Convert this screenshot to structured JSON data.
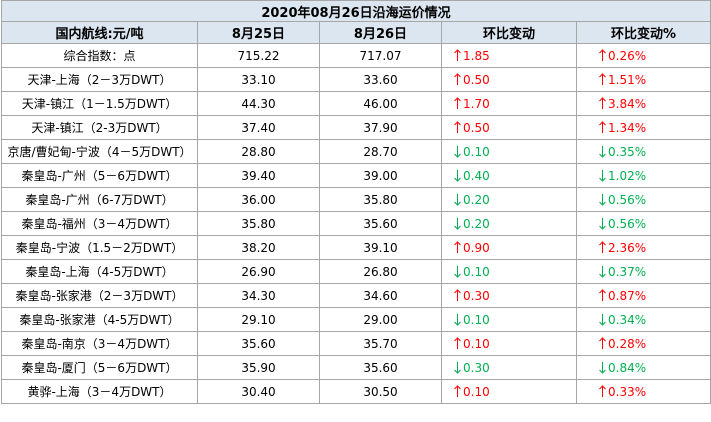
{
  "title": "2020年08月26日沿海运价情况",
  "header": [
    "国内航线:元/吨",
    "8月25日",
    "8月26日",
    "环比变动",
    "环比变动%"
  ],
  "rows": [
    {
      "route": "综合指数：点",
      "prev": "715.22",
      "curr": "717.07",
      "change": "1.85",
      "pct": "0.26%",
      "direction": "up"
    },
    {
      "route": "天津-上海（2－3万DWT）",
      "prev": "33.10",
      "curr": "33.60",
      "change": "0.50",
      "pct": "1.51%",
      "direction": "up"
    },
    {
      "route": "天津-镇江（1－1.5万DWT）",
      "prev": "44.30",
      "curr": "46.00",
      "change": "1.70",
      "pct": "3.84%",
      "direction": "up"
    },
    {
      "route": "天津-镇江（2-3万DWT）",
      "prev": "37.40",
      "curr": "37.90",
      "change": "0.50",
      "pct": "1.34%",
      "direction": "up"
    },
    {
      "route": "京唐/曹妃甸-宁波（4－5万DWT）",
      "prev": "28.80",
      "curr": "28.70",
      "change": "0.10",
      "pct": "0.35%",
      "direction": "down"
    },
    {
      "route": "秦皇岛-广州（5－6万DWT）",
      "prev": "39.40",
      "curr": "39.00",
      "change": "0.40",
      "pct": "1.02%",
      "direction": "down"
    },
    {
      "route": "秦皇岛-广州（6-7万DWT）",
      "prev": "36.00",
      "curr": "35.80",
      "change": "0.20",
      "pct": "0.56%",
      "direction": "down"
    },
    {
      "route": "秦皇岛-福州（3－4万DWT）",
      "prev": "35.80",
      "curr": "35.60",
      "change": "0.20",
      "pct": "0.56%",
      "direction": "down"
    },
    {
      "route": "秦皇岛-宁波（1.5－2万DWT）",
      "prev": "38.20",
      "curr": "39.10",
      "change": "0.90",
      "pct": "2.36%",
      "direction": "up"
    },
    {
      "route": "秦皇岛-上海（4-5万DWT）",
      "prev": "26.90",
      "curr": "26.80",
      "change": "0.10",
      "pct": "0.37%",
      "direction": "down"
    },
    {
      "route": "秦皇岛-张家港（2－3万DWT）",
      "prev": "34.30",
      "curr": "34.60",
      "change": "0.30",
      "pct": "0.87%",
      "direction": "up"
    },
    {
      "route": "秦皇岛-张家港（4-5万DWT）",
      "prev": "29.10",
      "curr": "29.00",
      "change": "0.10",
      "pct": "0.34%",
      "direction": "down"
    },
    {
      "route": "秦皇岛-南京（3－4万DWT）",
      "prev": "35.60",
      "curr": "35.70",
      "change": "0.10",
      "pct": "0.28%",
      "direction": "up"
    },
    {
      "route": "秦皇岛-厦门（5－6万DWT）",
      "prev": "35.90",
      "curr": "35.60",
      "change": "0.30",
      "pct": "0.84%",
      "direction": "down"
    },
    {
      "route": "黄骅-上海（3－4万DWT）",
      "prev": "30.40",
      "curr": "30.50",
      "change": "0.10",
      "pct": "0.33%",
      "direction": "up"
    }
  ]
}
